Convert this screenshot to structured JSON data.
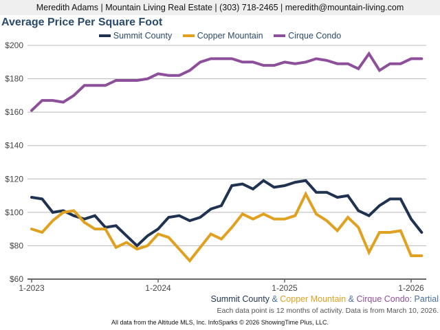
{
  "header": {
    "contact_line": "Meredith Adams | Mountain Living Real Estate | (303) 718-2465 | meredith@mountain-living.com"
  },
  "chart_data": {
    "type": "line",
    "title": "Average Price Per Square Foot",
    "xlabel": "",
    "ylabel": "",
    "ylim": [
      60,
      200
    ],
    "y_ticks": [
      60,
      80,
      100,
      120,
      140,
      160,
      180,
      200
    ],
    "y_tick_labels": [
      "$60",
      "$80",
      "$100",
      "$120",
      "$140",
      "$160",
      "$180",
      "$200"
    ],
    "x_tick_labels": [
      "1-2023",
      "1-2024",
      "1-2025",
      "1-2026"
    ],
    "x_tick_indices": [
      0,
      12,
      24,
      36
    ],
    "x_start": "1-2023",
    "x_end": "2-2026",
    "point_count": 38,
    "grid": true,
    "legend_position": "top-center",
    "series": [
      {
        "name": "Summit County",
        "color": "#1f3350",
        "values": [
          109,
          108,
          100,
          101,
          98,
          96,
          98,
          91,
          92,
          86,
          80,
          86,
          90,
          97,
          98,
          95,
          97,
          102,
          104,
          116,
          117,
          114,
          119,
          115,
          116,
          118,
          119,
          112,
          112,
          109,
          110,
          101,
          98,
          104,
          108,
          108,
          96,
          88
        ]
      },
      {
        "name": "Copper Mountain",
        "color": "#e0a020",
        "values": [
          90,
          88,
          95,
          100,
          101,
          94,
          90,
          90,
          79,
          82,
          78,
          80,
          87,
          85,
          78,
          71,
          79,
          87,
          84,
          91,
          99,
          96,
          99,
          96,
          96,
          98,
          111,
          99,
          95,
          89,
          97,
          91,
          76,
          88,
          88,
          89,
          74,
          74
        ]
      },
      {
        "name": "Cirque Condo",
        "color": "#8e4f9a",
        "values": [
          161,
          167,
          167,
          166,
          170,
          176,
          176,
          176,
          179,
          179,
          179,
          180,
          183,
          182,
          182,
          185,
          190,
          192,
          192,
          192,
          190,
          190,
          188,
          188,
          190,
          189,
          190,
          192,
          191,
          189,
          189,
          186,
          195,
          185,
          189,
          189,
          192,
          192
        ]
      }
    ]
  },
  "footer": {
    "partial_parts": [
      {
        "text": "Summit County",
        "color": "#1f3350"
      },
      {
        "text": " & ",
        "color": "#4a6fa0"
      },
      {
        "text": "Copper Mountain",
        "color": "#e0a020"
      },
      {
        "text": " & ",
        "color": "#4a6fa0"
      },
      {
        "text": "Cirque Condo",
        "color": "#8e4f9a"
      },
      {
        "text": ": Partial",
        "color": "#4a6fa0"
      }
    ],
    "note": "Each data point is 12 months of activity. Data is from March 10, 2026.",
    "source": "All data from the Altitude MLS, Inc. InfoSparks © 2026 ShowingTime Plus, LLC."
  }
}
